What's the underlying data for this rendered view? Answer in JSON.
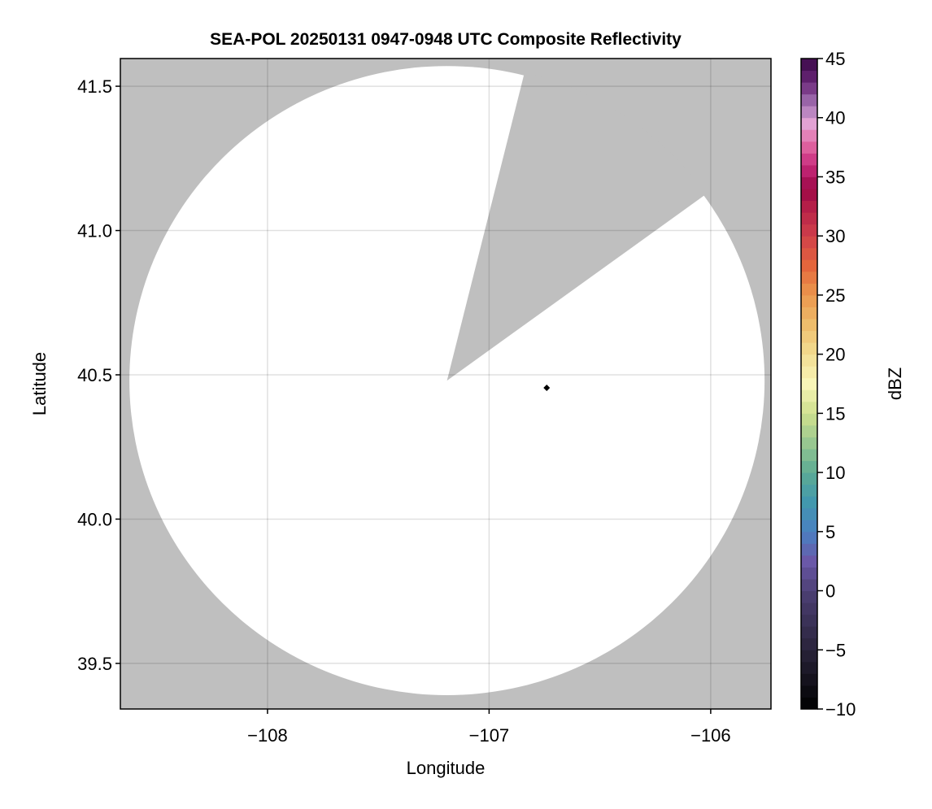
{
  "chart_data": {
    "type": "heatmap",
    "title": "SEA-POL 20250131 0947-0948 UTC Composite Reflectivity",
    "xlabel": "Longitude",
    "ylabel": "Latitude",
    "xlim": [
      -108.664,
      -105.728
    ],
    "ylim": [
      39.342,
      41.596
    ],
    "xticks": [
      -108,
      -107,
      -106
    ],
    "xtick_labels": [
      "−108",
      "−107",
      "−106"
    ],
    "yticks": [
      39.5,
      40.0,
      40.5,
      41.0,
      41.5
    ],
    "ytick_labels": [
      "39.5",
      "40.0",
      "40.5",
      "41.0",
      "41.5"
    ],
    "grid": true,
    "background_color": "#bfbfbf",
    "coverage_color": "#ffffff",
    "radar_coverage": {
      "center_lon": -107.19,
      "center_lat": 40.48,
      "range_km": 121,
      "missing_sector_azimuth_deg": [
        14,
        54
      ]
    },
    "echo_values": [],
    "marker": {
      "lon": -106.74,
      "lat": 40.455,
      "shape": "diamond",
      "color": "#000000"
    },
    "colorbar": {
      "label": "dBZ",
      "range": [
        -10,
        45
      ],
      "bin_width": 1,
      "ticks": [
        -10,
        -5,
        0,
        5,
        10,
        15,
        20,
        25,
        30,
        35,
        40,
        45
      ],
      "tick_labels": [
        "−10",
        "−5",
        "0",
        "5",
        "10",
        "15",
        "20",
        "25",
        "30",
        "35",
        "40",
        "45"
      ],
      "colormap_anchors": [
        [
          -10,
          "#000000"
        ],
        [
          -5,
          "#29233a"
        ],
        [
          0,
          "#4d4075"
        ],
        [
          2.5,
          "#6a58a8"
        ],
        [
          5,
          "#4a80c2"
        ],
        [
          7.5,
          "#4298ae"
        ],
        [
          10,
          "#5cab94"
        ],
        [
          12.5,
          "#98c790"
        ],
        [
          15,
          "#cfe08e"
        ],
        [
          17.5,
          "#f9f6b8"
        ],
        [
          20,
          "#f2dd92"
        ],
        [
          22.5,
          "#eebd6c"
        ],
        [
          25,
          "#ec984e"
        ],
        [
          27.5,
          "#e4663c"
        ],
        [
          30,
          "#d0404a"
        ],
        [
          32.5,
          "#b41e48"
        ],
        [
          34,
          "#9c0846"
        ],
        [
          36,
          "#c82a7c"
        ],
        [
          38,
          "#e470a8"
        ],
        [
          39.5,
          "#e2a2d4"
        ],
        [
          41,
          "#a878b8"
        ],
        [
          43,
          "#6a2678"
        ],
        [
          45,
          "#3a0848"
        ]
      ]
    }
  }
}
